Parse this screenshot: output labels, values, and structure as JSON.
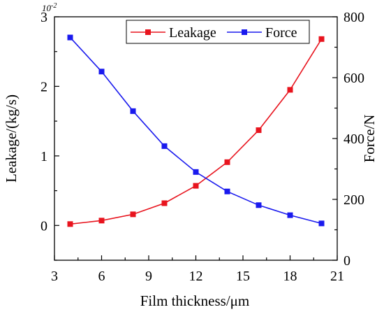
{
  "chart_data": {
    "type": "line",
    "xlabel": "Film thickness/μm",
    "ylabel_left": "Leakage/(kg/s)",
    "ylabel_right": "Force/N",
    "left_axis_multiplier": "10",
    "left_axis_exponent": "-2",
    "xlim": [
      3,
      21
    ],
    "x_ticks": [
      "3",
      "6",
      "9",
      "12",
      "15",
      "18",
      "21"
    ],
    "ylim_left": [
      -0.5,
      3
    ],
    "y_ticks_left": [
      "0",
      "1",
      "2",
      "3"
    ],
    "ylim_right": [
      0,
      800
    ],
    "y_ticks_right": [
      "0",
      "200",
      "400",
      "600",
      "800"
    ],
    "grid": false,
    "legend_position": "top-right",
    "x": [
      4,
      6,
      8,
      10,
      12,
      14,
      16,
      18,
      20
    ],
    "series": [
      {
        "name": "Leakage",
        "axis": "left",
        "color": "#e8141e",
        "marker": "square",
        "values": [
          0.02,
          0.07,
          0.16,
          0.32,
          0.57,
          0.91,
          1.37,
          1.95,
          2.68
        ]
      },
      {
        "name": "Force",
        "axis": "right",
        "color": "#1a1aee",
        "marker": "square",
        "values": [
          732,
          620,
          490,
          375,
          290,
          226,
          181,
          148,
          121
        ]
      }
    ]
  }
}
